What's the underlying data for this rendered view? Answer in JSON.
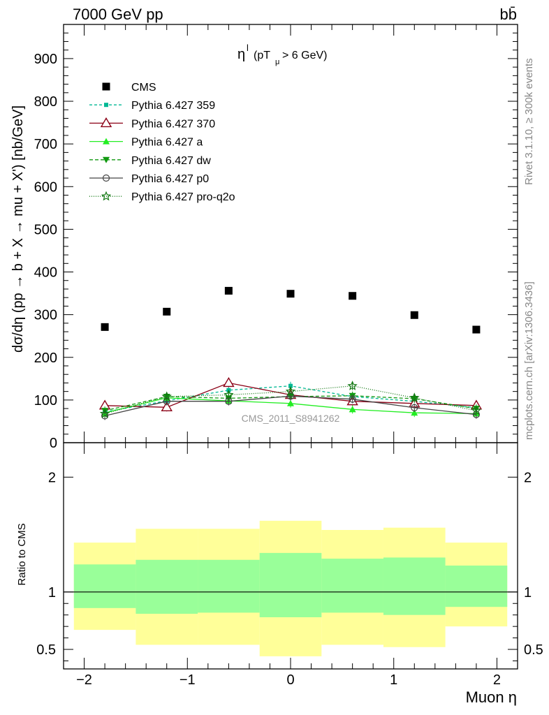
{
  "header": {
    "left": "7000 GeV pp",
    "right": "bb̄"
  },
  "side_labels": {
    "rivet": "Rivet 3.1.10, ≥ 300k events",
    "mcplots": "mcplots.cern.ch [arXiv:1306.3436]"
  },
  "chart_data": [
    {
      "type": "scatter",
      "title": "ηˡ (pTμ > 6 GeV)",
      "title_main": "η",
      "title_sup": "l",
      "title_paren": "(pT",
      "title_sub": "μ",
      "title_rest": " >  6 GeV)",
      "ylabel": "dσ/dη (pp → b + X → mu + X') [nb/GeV]",
      "xlabel": "Muon η",
      "watermark": "CMS_2011_S8941262",
      "xlim": [
        -2.2,
        2.2
      ],
      "ylim": [
        0,
        980
      ],
      "x_ticks": [
        -2,
        -1,
        0,
        1,
        2
      ],
      "x_tick_labels": [
        "−2",
        "−1",
        "0",
        "1",
        "2"
      ],
      "y_ticks": [
        0,
        100,
        200,
        300,
        400,
        500,
        600,
        700,
        800,
        900
      ],
      "y_tick_labels": [
        "0",
        "100",
        "200",
        "300",
        "400",
        "500",
        "600",
        "700",
        "800",
        "900"
      ],
      "x": [
        -1.8,
        -1.2,
        -0.6,
        0.0,
        0.6,
        1.2,
        1.8
      ],
      "series": [
        {
          "name": "CMS",
          "values": [
            271,
            307,
            356,
            349,
            344,
            299,
            265
          ],
          "color": "#000000",
          "marker": "square-filled",
          "dash": "none"
        },
        {
          "name": "Pythia 6.427 359",
          "values": [
            72,
            98,
            123,
            133,
            108,
            97,
            82
          ],
          "color": "#00b894",
          "marker": "square-small",
          "dash": "4,3"
        },
        {
          "name": "Pythia 6.427 370",
          "values": [
            87,
            83,
            140,
            112,
            97,
            92,
            87
          ],
          "color": "#8b0016",
          "marker": "triangle-open",
          "dash": "none"
        },
        {
          "name": "Pythia 6.427 a",
          "values": [
            70,
            105,
            98,
            92,
            78,
            70,
            68
          ],
          "color": "#22ee22",
          "marker": "triangle-filled",
          "dash": "none"
        },
        {
          "name": "Pythia 6.427 dw",
          "values": [
            75,
            108,
            104,
            108,
            110,
            103,
            80
          ],
          "color": "#119911",
          "marker": "triangle-down-filled",
          "dash": "5,3"
        },
        {
          "name": "Pythia 6.427 p0",
          "values": [
            63,
            97,
            97,
            109,
            102,
            82,
            66
          ],
          "color": "#444444",
          "marker": "circle-open",
          "dash": "none"
        },
        {
          "name": "Pythia 6.427 pro-q2o",
          "values": [
            68,
            108,
            112,
            120,
            133,
            105,
            75
          ],
          "color": "#117711",
          "marker": "star-open",
          "dash": "1,2"
        }
      ]
    },
    {
      "type": "area",
      "ylabel": "Ratio to CMS",
      "xlim": [
        -2.2,
        2.2
      ],
      "ylim": [
        0.33,
        2.3
      ],
      "y_ticks": [
        0.5,
        1,
        2
      ],
      "y_tick_labels": [
        "0.5",
        "1",
        "2"
      ],
      "bins": [
        {
          "lo": -2.1,
          "hi": -1.5,
          "inner": [
            0.86,
            1.24
          ],
          "outer": [
            0.67,
            1.43
          ]
        },
        {
          "lo": -1.5,
          "hi": -0.9,
          "inner": [
            0.81,
            1.28
          ],
          "outer": [
            0.54,
            1.55
          ]
        },
        {
          "lo": -0.9,
          "hi": -0.3,
          "inner": [
            0.82,
            1.28
          ],
          "outer": [
            0.54,
            1.55
          ]
        },
        {
          "lo": -0.3,
          "hi": 0.3,
          "inner": [
            0.78,
            1.34
          ],
          "outer": [
            0.44,
            1.62
          ]
        },
        {
          "lo": 0.3,
          "hi": 0.9,
          "inner": [
            0.82,
            1.29
          ],
          "outer": [
            0.54,
            1.54
          ]
        },
        {
          "lo": 0.9,
          "hi": 1.5,
          "inner": [
            0.8,
            1.3
          ],
          "outer": [
            0.52,
            1.56
          ]
        },
        {
          "lo": 1.5,
          "hi": 2.1,
          "inner": [
            0.87,
            1.23
          ],
          "outer": [
            0.7,
            1.43
          ]
        }
      ],
      "band_colors": {
        "inner": "#99ff99",
        "outer": "#ffff99"
      },
      "reference": 1
    }
  ]
}
